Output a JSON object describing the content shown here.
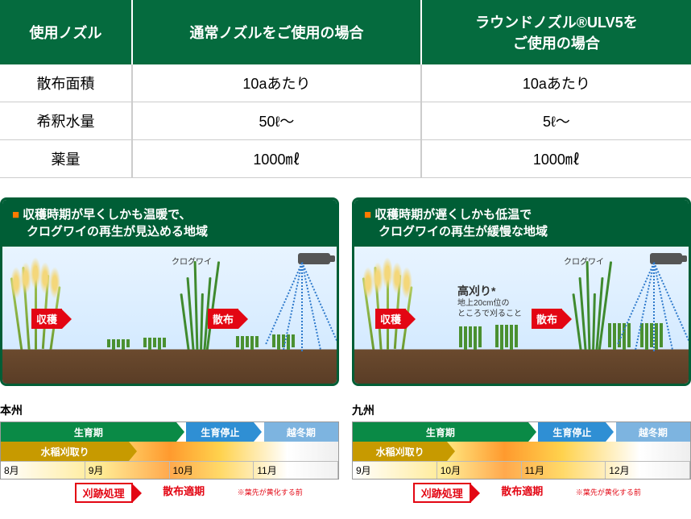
{
  "table": {
    "headers": [
      "使用ノズル",
      "通常ノズルをご使用の場合",
      "ラウンドノズル®ULV5を\nご使用の場合"
    ],
    "rows": [
      [
        "散布面積",
        "10aあたり",
        "10aあたり"
      ],
      [
        "希釈水量",
        "50ℓ〜",
        "5ℓ〜"
      ],
      [
        "薬量",
        "1000㎖",
        "1000㎖"
      ]
    ],
    "header_bg": "#056b3e",
    "header_fg": "#ffffff",
    "border_color": "#cccccc",
    "fontsize_header": 18,
    "fontsize_cell": 18
  },
  "panels": [
    {
      "title_line1": "収穫時期が早くしかも温暖で、",
      "title_line2": "クログワイの再生が見込める地域",
      "harvest_label": "収穫",
      "spray_label": "散布",
      "kurogu_label": "クログワイ",
      "has_takagari": false
    },
    {
      "title_line1": "収穫時期が遅くしかも低温で",
      "title_line2": "クログワイの再生が緩慢な地域",
      "harvest_label": "収穫",
      "spray_label": "散布",
      "kurogu_label": "クログワイ",
      "has_takagari": true,
      "takagari_title": "高刈り*",
      "takagari_note1": "地上20cm位の",
      "takagari_note2": "ところで刈ること"
    }
  ],
  "panel_colors": {
    "border": "#005e36",
    "header_bg": "#005e36",
    "header_fg": "#ffffff",
    "square_marker": "#ff7a00",
    "sky_top": "#e8f4ff",
    "sky_bottom": "#d4eaff",
    "soil_top": "#6b4a2e",
    "soil_bottom": "#5a3d26",
    "badge_bg": "#e30613",
    "badge_fg": "#ffffff",
    "spray_color": "#2f7acc",
    "rice_stem": "#6b9b2f",
    "kurogu_stem": "#3f8a2e"
  },
  "timelines": [
    {
      "title": "本州",
      "months": [
        "8月",
        "9月",
        "10月",
        "11月"
      ],
      "month_width_pct": 25,
      "growing": {
        "label": "生育期",
        "start_pct": 0,
        "end_pct": 52,
        "bg": "#0a8a46"
      },
      "stop": {
        "label": "生育停止",
        "start_pct": 55,
        "end_pct": 75,
        "bg": "#2f8fd4"
      },
      "winter": {
        "label": "越冬期",
        "start_pct": 78,
        "end_pct": 100,
        "bg": "#7db4e0"
      },
      "ricecut": {
        "label": "水稲刈取り",
        "start_pct": 0,
        "end_pct": 38,
        "bg": "#c79a00"
      },
      "gradient_stops": [
        {
          "c": "#ffffff",
          "p": 0
        },
        {
          "c": "#ffe680",
          "p": 30
        },
        {
          "c": "#ff9a2e",
          "p": 50
        },
        {
          "c": "#ffd24d",
          "p": 65
        },
        {
          "c": "#ffffff",
          "p": 85
        },
        {
          "c": "#eeeeee",
          "p": 100
        }
      ],
      "foot_box": "刈跡処理",
      "foot_text": "散布適期",
      "foot_note": "※葉先が黄化する前",
      "foot_box_left_pct": 22,
      "foot_text_left_pct": 48,
      "foot_note_left_pct": 70
    },
    {
      "title": "九州",
      "months": [
        "9月",
        "10月",
        "11月",
        "12月"
      ],
      "month_width_pct": 25,
      "growing": {
        "label": "生育期",
        "start_pct": 0,
        "end_pct": 52,
        "bg": "#0a8a46"
      },
      "stop": {
        "label": "生育停止",
        "start_pct": 55,
        "end_pct": 75,
        "bg": "#2f8fd4"
      },
      "winter": {
        "label": "越冬期",
        "start_pct": 78,
        "end_pct": 100,
        "bg": "#7db4e0"
      },
      "ricecut": {
        "label": "水稲刈取り",
        "start_pct": 0,
        "end_pct": 28,
        "bg": "#c79a00"
      },
      "gradient_stops": [
        {
          "c": "#ffffff",
          "p": 0
        },
        {
          "c": "#ffe680",
          "p": 28
        },
        {
          "c": "#ff9a2e",
          "p": 45
        },
        {
          "c": "#ffd24d",
          "p": 62
        },
        {
          "c": "#ffffff",
          "p": 85
        },
        {
          "c": "#eeeeee",
          "p": 100
        }
      ],
      "foot_box": "刈跡処理",
      "foot_text": "散布適期",
      "foot_note": "※葉先が黄化する前",
      "foot_box_left_pct": 18,
      "foot_text_left_pct": 44,
      "foot_note_left_pct": 66
    }
  ],
  "timeline_colors": {
    "foot_color": "#e30613",
    "border": "#999999",
    "month_fg": "#333333"
  }
}
